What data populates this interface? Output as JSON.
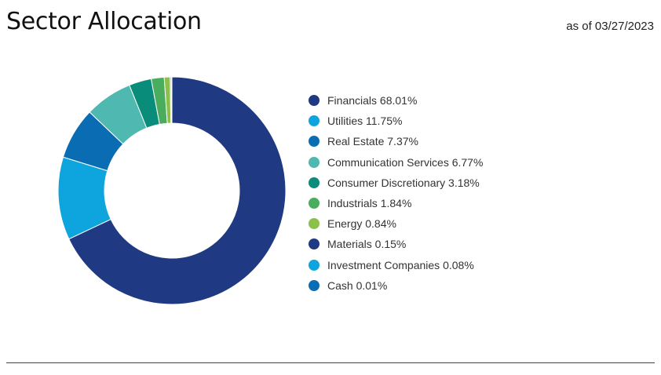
{
  "header": {
    "title": "Sector Allocation",
    "as_of": "as of 03/27/2023"
  },
  "chart_data": {
    "type": "pie",
    "donut": true,
    "title": "Sector Allocation",
    "legend_position": "right",
    "slices": [
      {
        "label": "Financials",
        "value": 68.01,
        "display": "Financials 68.01%",
        "color": "#1f3a82"
      },
      {
        "label": "Utilities",
        "value": 11.75,
        "display": "Utilities 11.75%",
        "color": "#0ea5de"
      },
      {
        "label": "Real Estate",
        "value": 7.37,
        "display": "Real Estate 7.37%",
        "color": "#0a6cb3"
      },
      {
        "label": "Communication Services",
        "value": 6.77,
        "display": "Communication Services 6.77%",
        "color": "#4fb8b0"
      },
      {
        "label": "Consumer Discretionary",
        "value": 3.18,
        "display": "Consumer Discretionary 3.18%",
        "color": "#0a8c7b"
      },
      {
        "label": "Industrials",
        "value": 1.84,
        "display": "Industrials 1.84%",
        "color": "#4aad5e"
      },
      {
        "label": "Energy",
        "value": 0.84,
        "display": "Energy 0.84%",
        "color": "#8cc04b"
      },
      {
        "label": "Materials",
        "value": 0.15,
        "display": "Materials 0.15%",
        "color": "#1f3a82"
      },
      {
        "label": "Investment Companies",
        "value": 0.08,
        "display": "Investment Companies 0.08%",
        "color": "#0ea5de"
      },
      {
        "label": "Cash",
        "value": 0.01,
        "display": "Cash 0.01%",
        "color": "#0a6cb3"
      }
    ]
  }
}
